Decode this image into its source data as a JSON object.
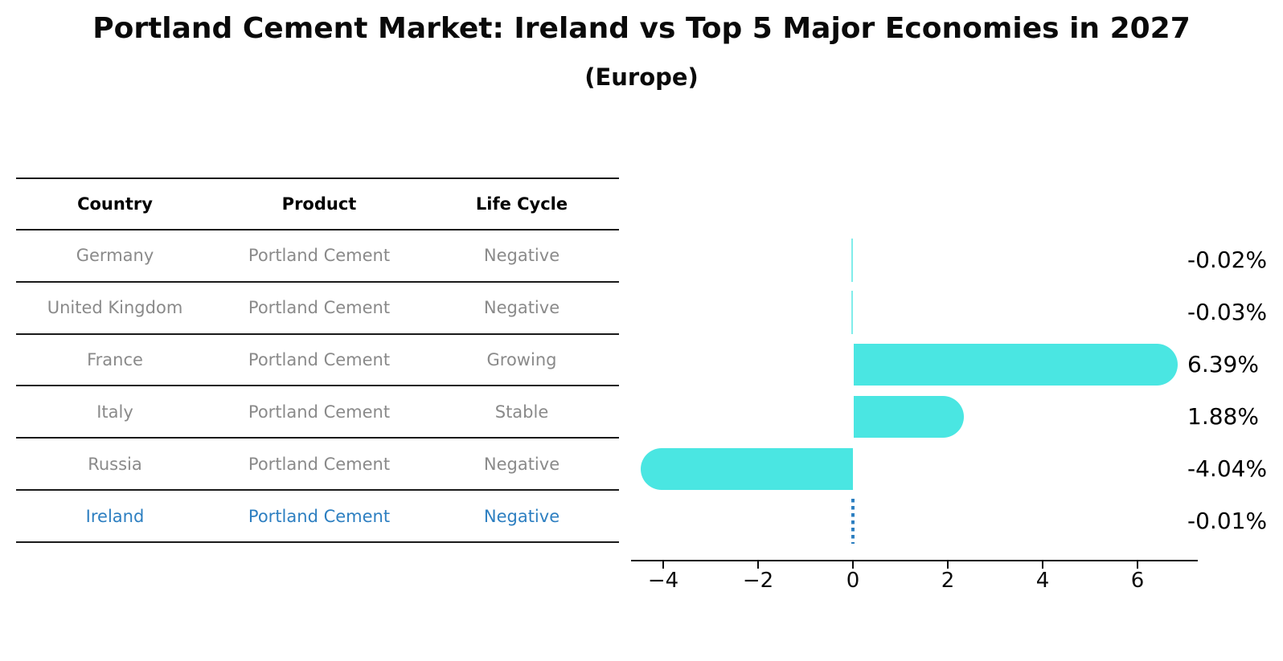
{
  "title": "Portland Cement Market: Ireland vs Top 5 Major Economies in 2027",
  "subtitle": "(Europe)",
  "table": {
    "headers": [
      "Country",
      "Product",
      "Life Cycle"
    ],
    "rows": [
      {
        "country": "Germany",
        "product": "Portland Cement",
        "life_cycle": "Negative",
        "highlight": false
      },
      {
        "country": "United Kingdom",
        "product": "Portland Cement",
        "life_cycle": "Negative",
        "highlight": false
      },
      {
        "country": "France",
        "product": "Portland Cement",
        "life_cycle": "Growing",
        "highlight": false
      },
      {
        "country": "Italy",
        "product": "Portland Cement",
        "life_cycle": "Stable",
        "highlight": false
      },
      {
        "country": "Russia",
        "product": "Portland Cement",
        "life_cycle": "Negative",
        "highlight": false
      },
      {
        "country": "Ireland",
        "product": "Portland Cement",
        "life_cycle": "Negative",
        "highlight": true
      }
    ]
  },
  "chart_data": {
    "type": "bar",
    "orientation": "horizontal",
    "categories": [
      "Germany",
      "United Kingdom",
      "France",
      "Italy",
      "Russia",
      "Ireland"
    ],
    "values": [
      -0.02,
      -0.03,
      6.39,
      1.88,
      -4.04,
      -0.01
    ],
    "value_labels": [
      "-0.02%",
      "-0.03%",
      "6.39%",
      "1.88%",
      "-4.04%",
      "-0.01%"
    ],
    "x_ticks": [
      -4,
      -2,
      0,
      2,
      4,
      6
    ],
    "x_tick_labels": [
      "−4",
      "−2",
      "0",
      "2",
      "4",
      "6"
    ],
    "xlim": [
      -4.7,
      7.3
    ],
    "grid": false,
    "legend": false,
    "bar_color": "#4AE6E2",
    "highlight_color": "#2D7FC1",
    "highlight_category": "Ireland",
    "highlight_style": "dotted vertical line at zero",
    "value_label_color": "#000000"
  },
  "colors": {
    "background": "#FFFFFF",
    "header_text": "#000000",
    "row_text": "#8A8A8A",
    "rule": "#1A1A1A",
    "axis": "#0A0A0A"
  }
}
